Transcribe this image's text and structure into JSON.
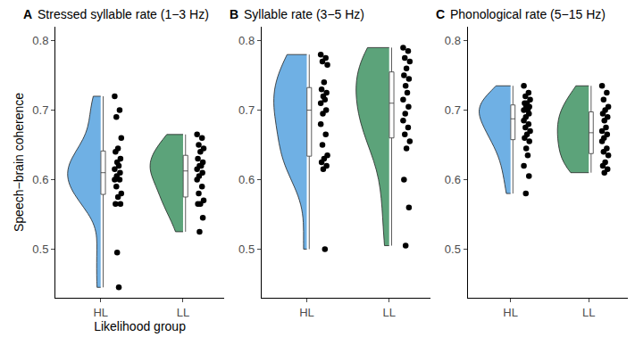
{
  "chart_data": [
    {
      "type": "violin",
      "panel": "A",
      "title": "Stressed syllable rate (1−3 Hz)",
      "x_label": "Likelihood group",
      "y_label": "Speech−brain coherence",
      "ylim": [
        0.43,
        0.82
      ],
      "yticks": [
        0.5,
        0.6,
        0.7,
        0.8
      ],
      "grid": false,
      "series": [
        {
          "name": "HL",
          "color": "#6fb0e4",
          "values": [
            0.72,
            0.7,
            0.69,
            0.66,
            0.645,
            0.64,
            0.63,
            0.625,
            0.62,
            0.615,
            0.61,
            0.605,
            0.6,
            0.6,
            0.59,
            0.58,
            0.575,
            0.565,
            0.565,
            0.495,
            0.445
          ]
        },
        {
          "name": "LL",
          "color": "#5ca37a",
          "values": [
            0.665,
            0.66,
            0.65,
            0.645,
            0.64,
            0.63,
            0.625,
            0.62,
            0.62,
            0.615,
            0.61,
            0.605,
            0.6,
            0.59,
            0.58,
            0.57,
            0.565,
            0.565,
            0.545,
            0.525
          ]
        }
      ]
    },
    {
      "type": "violin",
      "panel": "B",
      "title": "Syllable rate (3−5 Hz)",
      "ylim": [
        0.43,
        0.82
      ],
      "yticks": [
        0.5,
        0.6,
        0.7,
        0.8
      ],
      "grid": false,
      "series": [
        {
          "name": "HL",
          "color": "#6fb0e4",
          "values": [
            0.78,
            0.775,
            0.77,
            0.765,
            0.74,
            0.73,
            0.725,
            0.72,
            0.715,
            0.71,
            0.7,
            0.695,
            0.68,
            0.665,
            0.65,
            0.635,
            0.63,
            0.625,
            0.62,
            0.615,
            0.5
          ]
        },
        {
          "name": "LL",
          "color": "#5ca37a",
          "values": [
            0.79,
            0.785,
            0.775,
            0.77,
            0.76,
            0.75,
            0.745,
            0.735,
            0.725,
            0.715,
            0.705,
            0.695,
            0.685,
            0.675,
            0.665,
            0.655,
            0.645,
            0.6,
            0.56,
            0.505
          ]
        }
      ]
    },
    {
      "type": "violin",
      "panel": "C",
      "title": "Phonological rate (5−15 Hz)",
      "ylim": [
        0.43,
        0.82
      ],
      "yticks": [
        0.5,
        0.6,
        0.7,
        0.8
      ],
      "grid": false,
      "series": [
        {
          "name": "HL",
          "color": "#6fb0e4",
          "values": [
            0.735,
            0.725,
            0.72,
            0.715,
            0.71,
            0.71,
            0.705,
            0.705,
            0.7,
            0.7,
            0.695,
            0.69,
            0.685,
            0.68,
            0.675,
            0.67,
            0.665,
            0.66,
            0.655,
            0.645,
            0.635,
            0.62,
            0.605,
            0.58
          ]
        },
        {
          "name": "LL",
          "color": "#5ca37a",
          "values": [
            0.735,
            0.725,
            0.715,
            0.705,
            0.7,
            0.695,
            0.69,
            0.685,
            0.675,
            0.67,
            0.665,
            0.66,
            0.655,
            0.645,
            0.64,
            0.635,
            0.625,
            0.62,
            0.615,
            0.61
          ]
        }
      ]
    }
  ]
}
